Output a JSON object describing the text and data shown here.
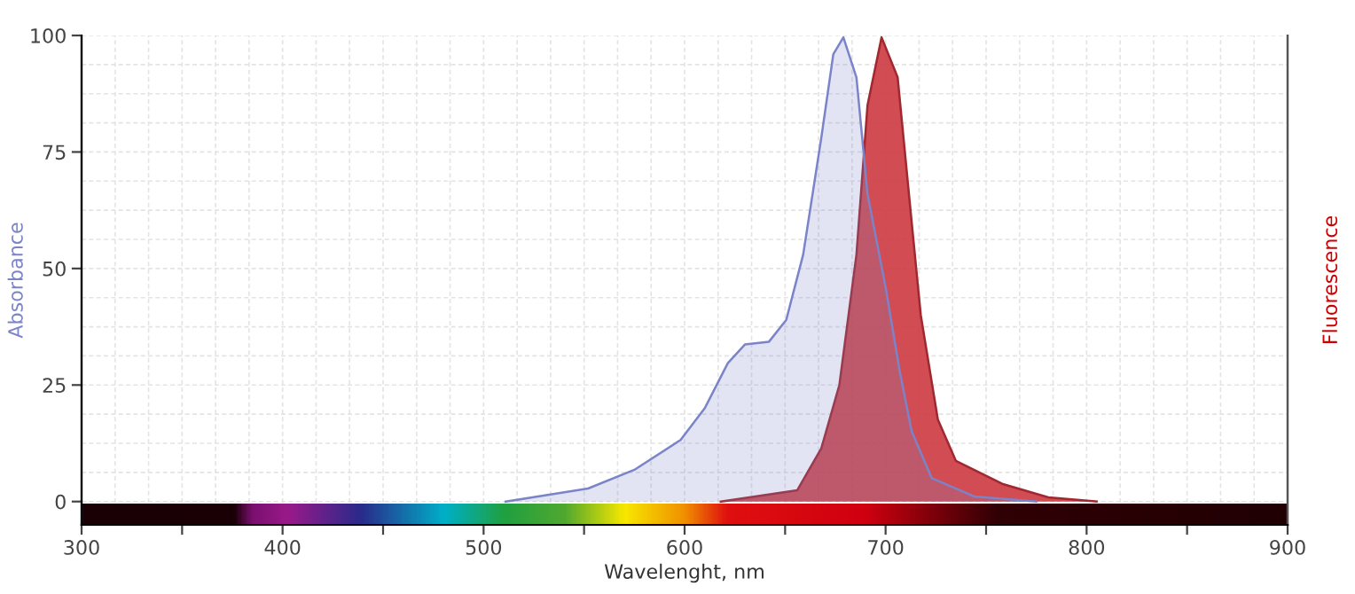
{
  "chart_data": {
    "type": "area",
    "xlabel": "Wavelenght, nm",
    "ylabel": "Absorbance",
    "y2label": "Fluorescence",
    "series": [
      {
        "color": "#cc3a40",
        "x": [
          618,
          656,
          668,
          677,
          685.5,
          691,
          698,
          706,
          711.6,
          717.5,
          726,
          735,
          758,
          781,
          805
        ],
        "values": [
          0,
          2.4,
          11.4,
          25,
          53,
          85,
          99.6,
          91,
          66,
          40,
          17.6,
          8.7,
          3.8,
          0.9,
          0
        ]
      },
      {
        "color": "#7b83c9",
        "x": [
          511,
          552,
          575,
          598,
          610,
          621.5,
          630,
          642,
          650.6,
          659,
          668,
          674,
          679,
          685.5,
          691,
          700,
          707,
          713,
          723,
          744,
          775
        ],
        "values": [
          0,
          2.8,
          6.8,
          13.2,
          20,
          29.7,
          33.7,
          34.3,
          39,
          53,
          78,
          96,
          99.6,
          91,
          66,
          46,
          28,
          15,
          5,
          1.1,
          0
        ]
      }
    ],
    "xlim": [
      300,
      900
    ],
    "xticks": [
      300,
      {
        "value": 350,
        "label": null
      },
      400,
      {
        "value": 450,
        "label": null
      },
      500,
      {
        "value": 550,
        "label": null
      },
      600,
      {
        "value": 650,
        "label": null
      },
      700,
      {
        "value": 750,
        "label": null
      },
      800,
      {
        "value": 850,
        "label": null
      },
      900
    ],
    "ylim": [
      -5,
      100
    ],
    "yticks": [
      0,
      25,
      50,
      75,
      100
    ],
    "grid": true
  }
}
